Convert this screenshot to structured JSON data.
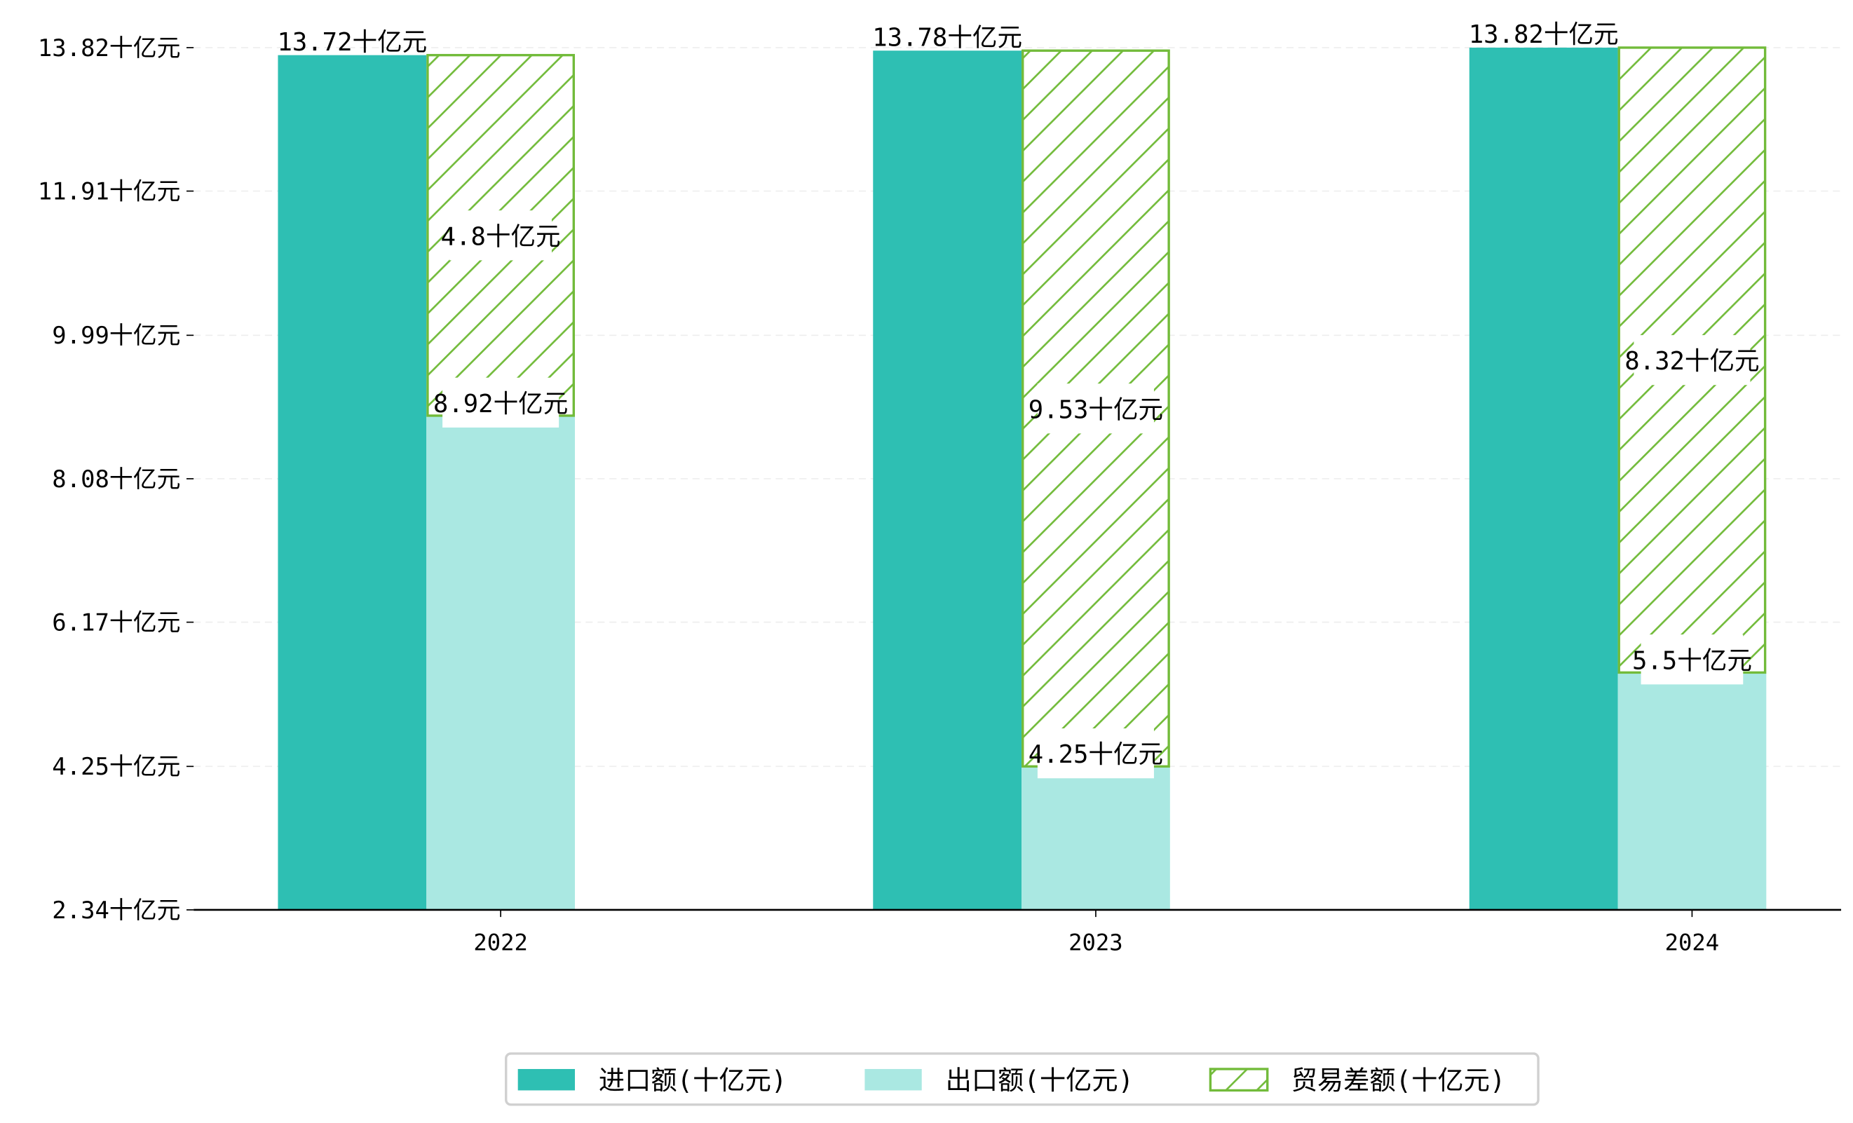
{
  "chart_data": {
    "type": "bar",
    "stacked_series": "trade_balance stacked on exports",
    "categories": [
      "2022",
      "2023",
      "2024"
    ],
    "unit_suffix": "十亿元",
    "series": [
      {
        "name": "进口额(十亿元)",
        "key": "imports",
        "values": [
          13.72,
          13.78,
          13.82
        ],
        "color": "#2ebfb3"
      },
      {
        "name": "出口额(十亿元)",
        "key": "exports",
        "values": [
          8.92,
          4.25,
          5.5
        ],
        "color": "#aae8e2"
      },
      {
        "name": "贸易差额(十亿元)",
        "key": "balance",
        "values": [
          4.8,
          9.53,
          8.32
        ],
        "color": "#72bb3a",
        "pattern": "hatch"
      }
    ],
    "data_labels": {
      "imports": [
        "13.72十亿元",
        "13.78十亿元",
        "13.82十亿元"
      ],
      "exports": [
        "8.92十亿元",
        "4.25十亿元",
        "5.5十亿元"
      ],
      "balance": [
        "4.8十亿元",
        "9.53十亿元",
        "8.32十亿元"
      ]
    },
    "yticks": [
      2.34,
      4.25,
      6.17,
      8.08,
      9.99,
      11.91,
      13.82
    ],
    "ytick_labels": [
      "2.34十亿元",
      "4.25十亿元",
      "6.17十亿元",
      "8.08十亿元",
      "9.99十亿元",
      "11.91十亿元",
      "13.82十亿元"
    ],
    "ylim": [
      2.34,
      13.82
    ],
    "grid": "horizontal dashed",
    "legend": "bottom-center",
    "title": "",
    "xlabel": "",
    "ylabel": ""
  }
}
